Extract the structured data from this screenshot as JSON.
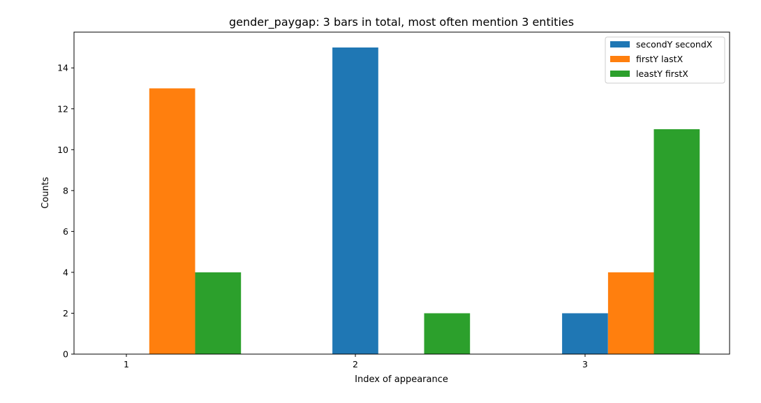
{
  "chart_data": {
    "type": "bar",
    "title": "gender_paygap: 3 bars in total, most often mention  3 entities",
    "xlabel": "Index of appearance",
    "ylabel": "Counts",
    "categories": [
      "1",
      "2",
      "3"
    ],
    "ylim": [
      0,
      15.75
    ],
    "yticks": [
      0,
      2,
      4,
      6,
      8,
      10,
      12,
      14
    ],
    "grid": false,
    "legend_position": "top-right",
    "series": [
      {
        "name": "secondY secondX",
        "color": "#1f77b4",
        "values": [
          0,
          15,
          2
        ]
      },
      {
        "name": "firstY lastX",
        "color": "#ff7f0e",
        "values": [
          13,
          0,
          4
        ]
      },
      {
        "name": "leastY firstX",
        "color": "#2ca02c",
        "values": [
          4,
          2,
          11
        ]
      }
    ]
  }
}
